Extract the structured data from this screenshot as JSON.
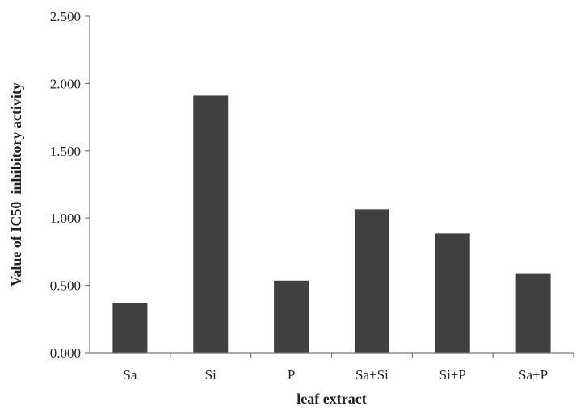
{
  "chart_data": {
    "type": "bar",
    "title": "",
    "xlabel": "leaf extract",
    "ylabel": "Value of IC50  inhibitory activity",
    "categories": [
      "Sa",
      "Si",
      "P",
      "Sa+Si",
      "Si+P",
      "Sa+P"
    ],
    "values": [
      0.37,
      1.91,
      0.535,
      1.065,
      0.885,
      0.59
    ],
    "ylim": [
      0,
      2.5
    ],
    "yticks": [
      "0.000",
      "0.500",
      "1.000",
      "1.500",
      "2.000",
      "2.500"
    ],
    "grid": false,
    "legend": "none",
    "bar_color": "#404040"
  }
}
